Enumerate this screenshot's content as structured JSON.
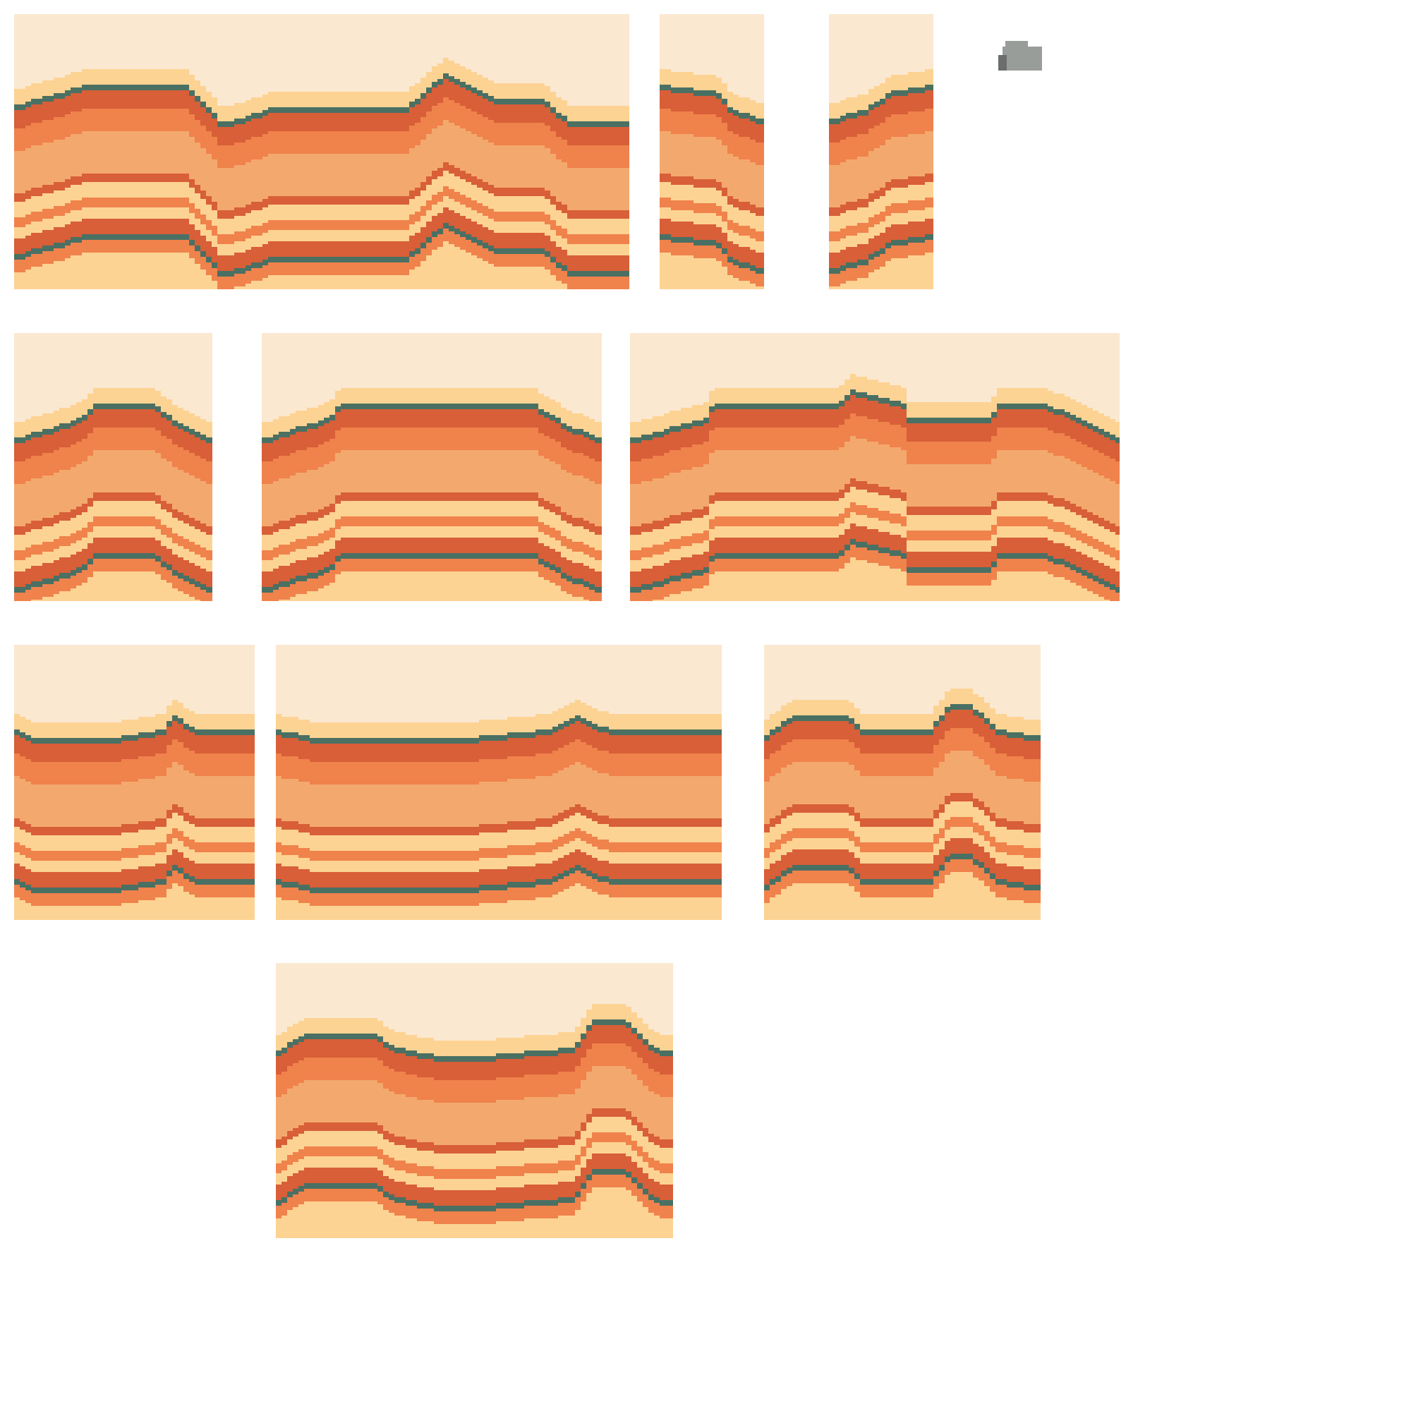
{
  "sheet": {
    "kind": "pixel-art tileset sheet",
    "background": "#ffffff"
  },
  "palette": {
    "sky": "#fbe8d1",
    "pale": "#fdd393",
    "peach": "#f3a96e",
    "orange": "#f0824c",
    "red": "#d85f38",
    "line": "#4a7063",
    "line_dark": "#2f4e45",
    "rock_light": "#999d9a",
    "rock_dark": "#6a6d6b"
  },
  "tiles": [
    {
      "name": "canyon-wall-long-wavy",
      "kind": "strata-wall",
      "variant": "wavy"
    },
    {
      "name": "canyon-wall-right-edge",
      "kind": "strata-wall",
      "variant": "edge-right"
    },
    {
      "name": "canyon-wall-left-edge",
      "kind": "strata-wall",
      "variant": "edge-left"
    },
    {
      "name": "small-rock",
      "kind": "prop"
    },
    {
      "name": "canyon-wall-single-hump",
      "kind": "strata-wall",
      "variant": "hump"
    },
    {
      "name": "canyon-wall-flat-plateau",
      "kind": "strata-wall",
      "variant": "plateau"
    },
    {
      "name": "canyon-wall-plateau-peaks",
      "kind": "strata-wall",
      "variant": "plateau-peaks"
    },
    {
      "name": "canyon-wall-low-short",
      "kind": "strata-wall",
      "variant": "low"
    },
    {
      "name": "canyon-wall-low-long",
      "kind": "strata-wall",
      "variant": "low"
    },
    {
      "name": "canyon-wall-double-hump",
      "kind": "strata-wall",
      "variant": "double"
    },
    {
      "name": "canyon-wall-mixed",
      "kind": "strata-wall",
      "variant": "mixed"
    }
  ]
}
